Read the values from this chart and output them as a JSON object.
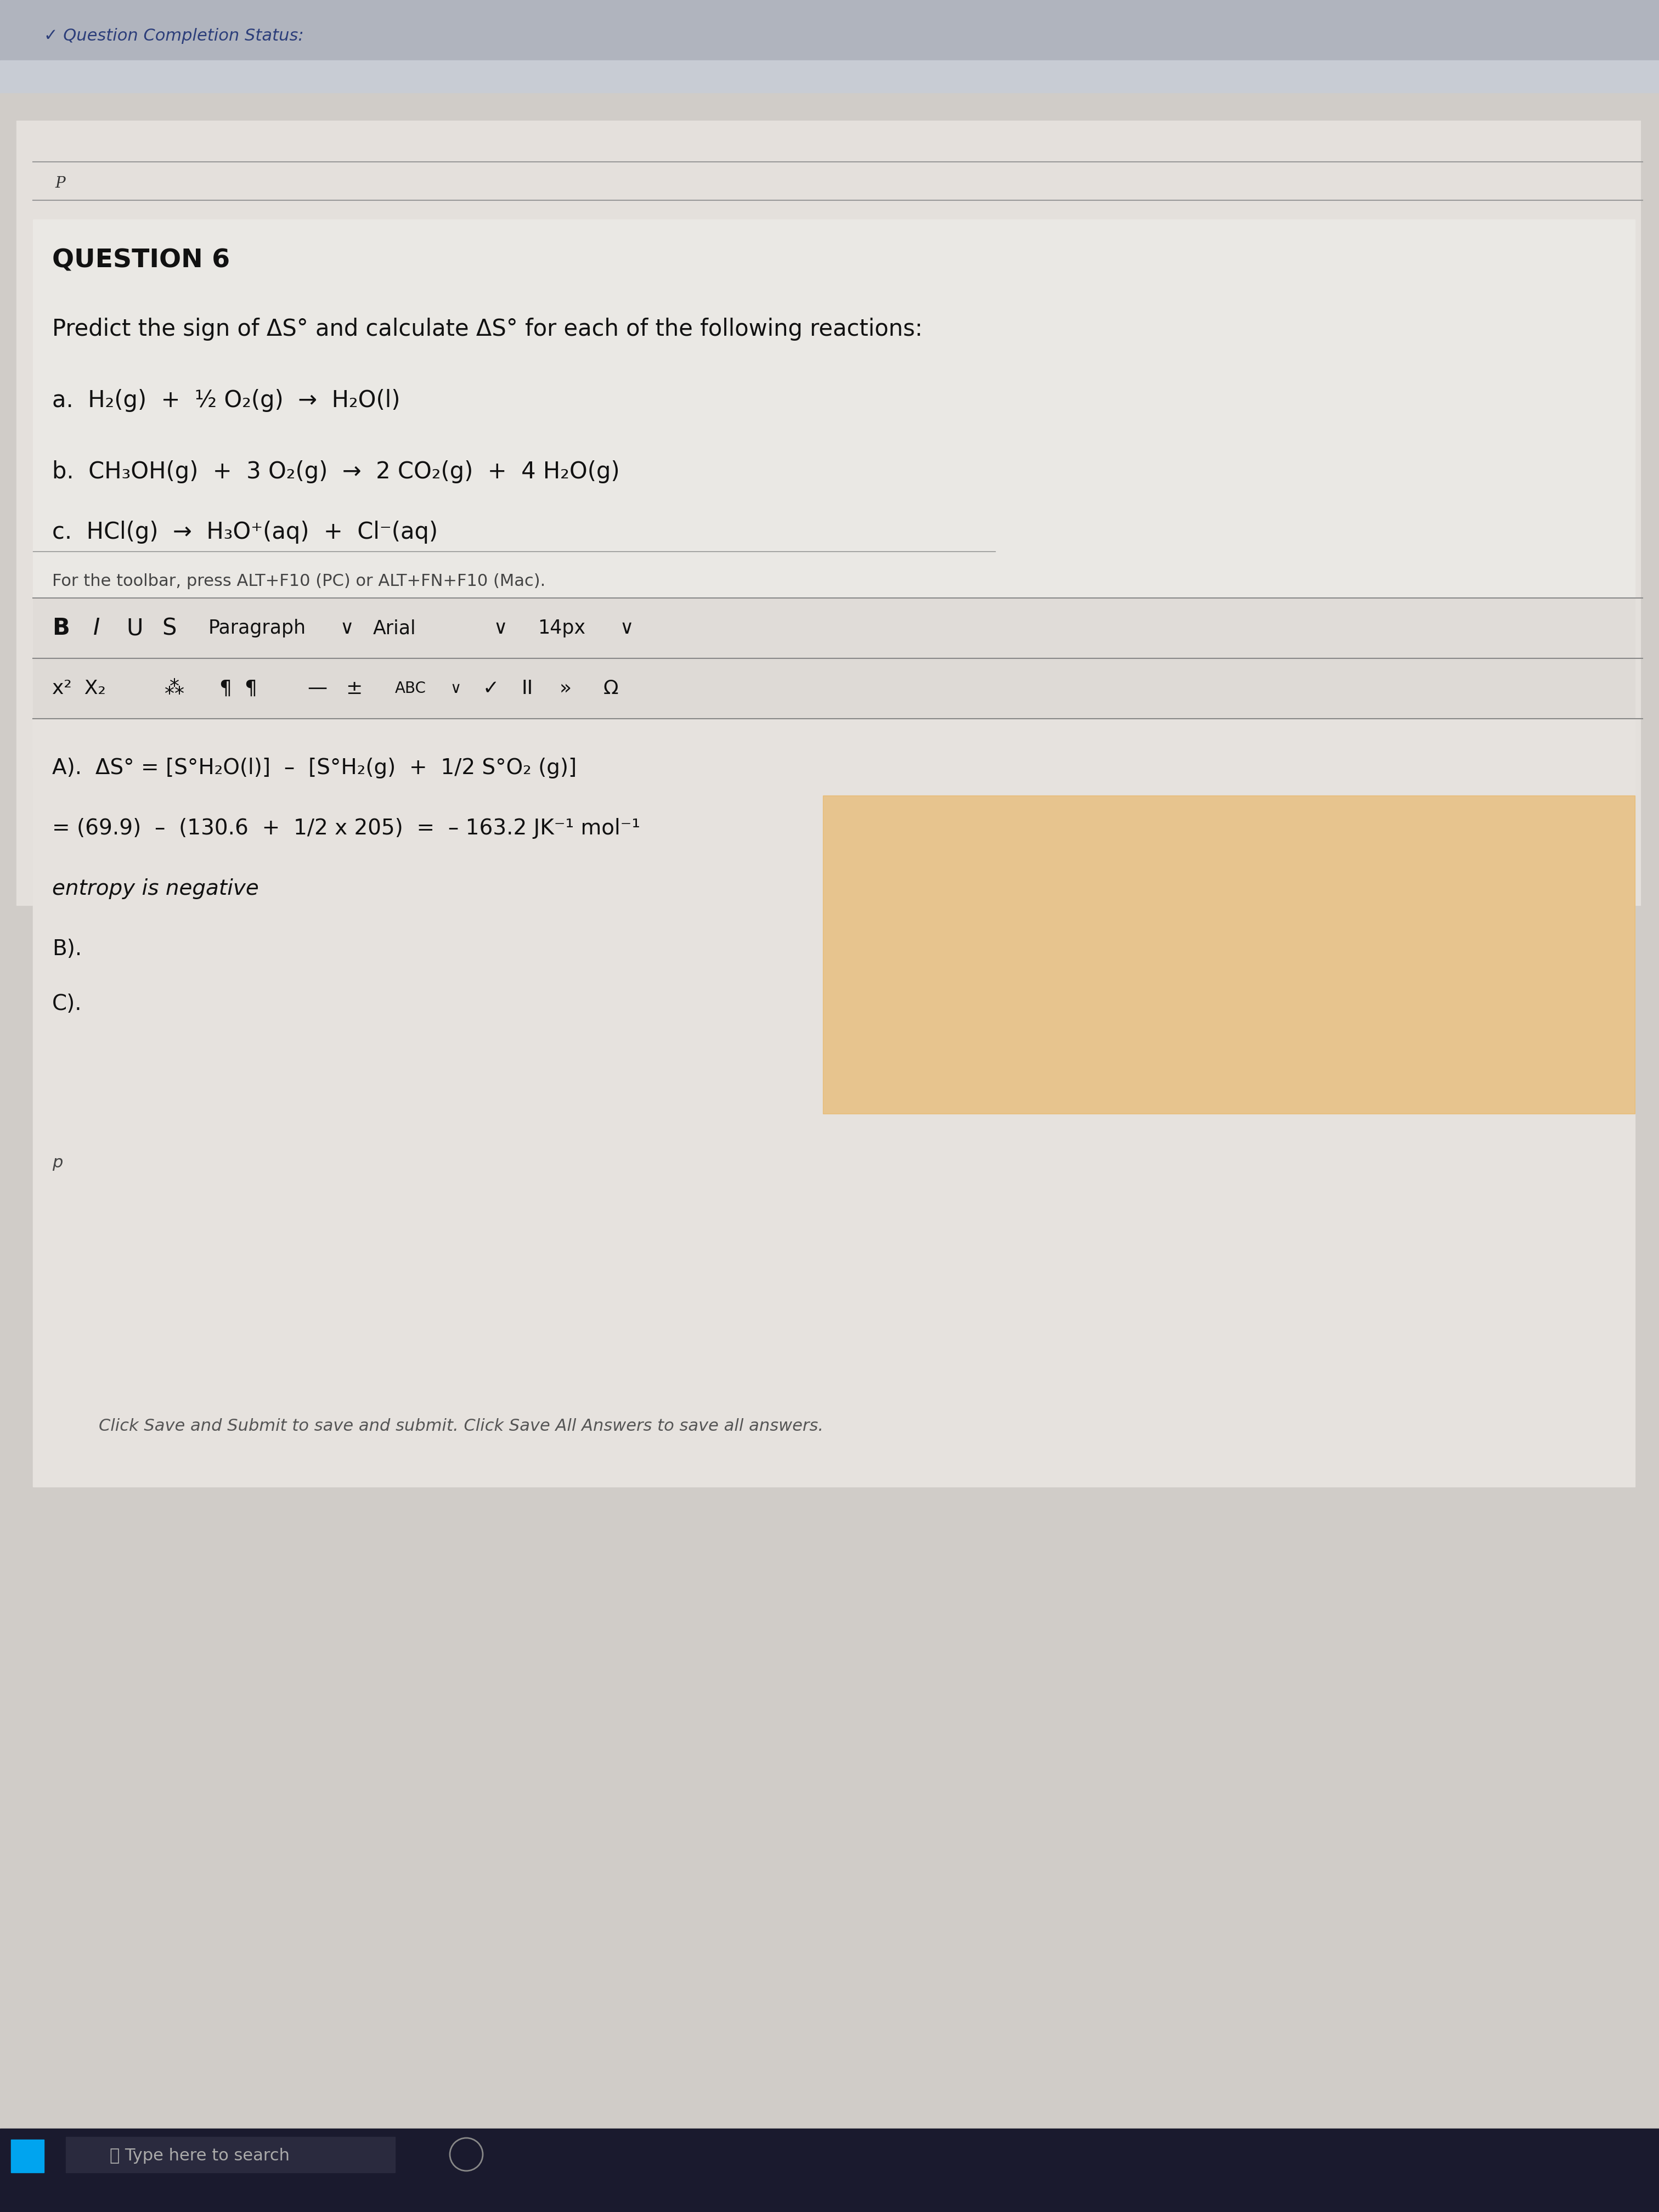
{
  "bg_top_color": "#b8bcc8",
  "bg_main_color": "#d4d0cc",
  "bg_content_color": "#e8e4e0",
  "question_completion_text": "✓ Question Completion Status:",
  "question_number": "QUESTION 6",
  "prompt": "Predict the sign of ΔS° and calculate ΔS° for each of the following reactions:",
  "reaction_a": "a.  H₂(g)  +  ½ O₂(g)  →  H₂O(l)",
  "reaction_b": "b.  CH₃OH(g)  +  3 O₂(g)  →  2 CO₂(g)  +  4 H₂O(g)",
  "reaction_c": "c.  HCl(g)  →  H₃O⁺(aq)  +  Cl⁻(aq)",
  "toolbar_note": "For the toolbar, press ALT+F10 (PC) or ALT+FN+F10 (Mac).",
  "toolbar_items": "B  I  U  S    Paragraph    ∨    Arial    ∨    14px    ∨",
  "answer_a_line1": "A).  ΔS° = [S°H₂O(l)]  –  [S°H₂(g)  +  1/2 S°O₂ (g)]",
  "answer_a_line2": "= (69.9)  –  (130.6  +  1/2 x 205)  =  – 163.2 JK⁻¹ mol⁻¹",
  "answer_a_line3": "entropy is negative",
  "answer_b": "B).",
  "answer_c": "C).",
  "footer_note": "Click Save and Submit to save and submit. Click Save All Answers to save all answers.",
  "taskbar_text": "Type here to search"
}
